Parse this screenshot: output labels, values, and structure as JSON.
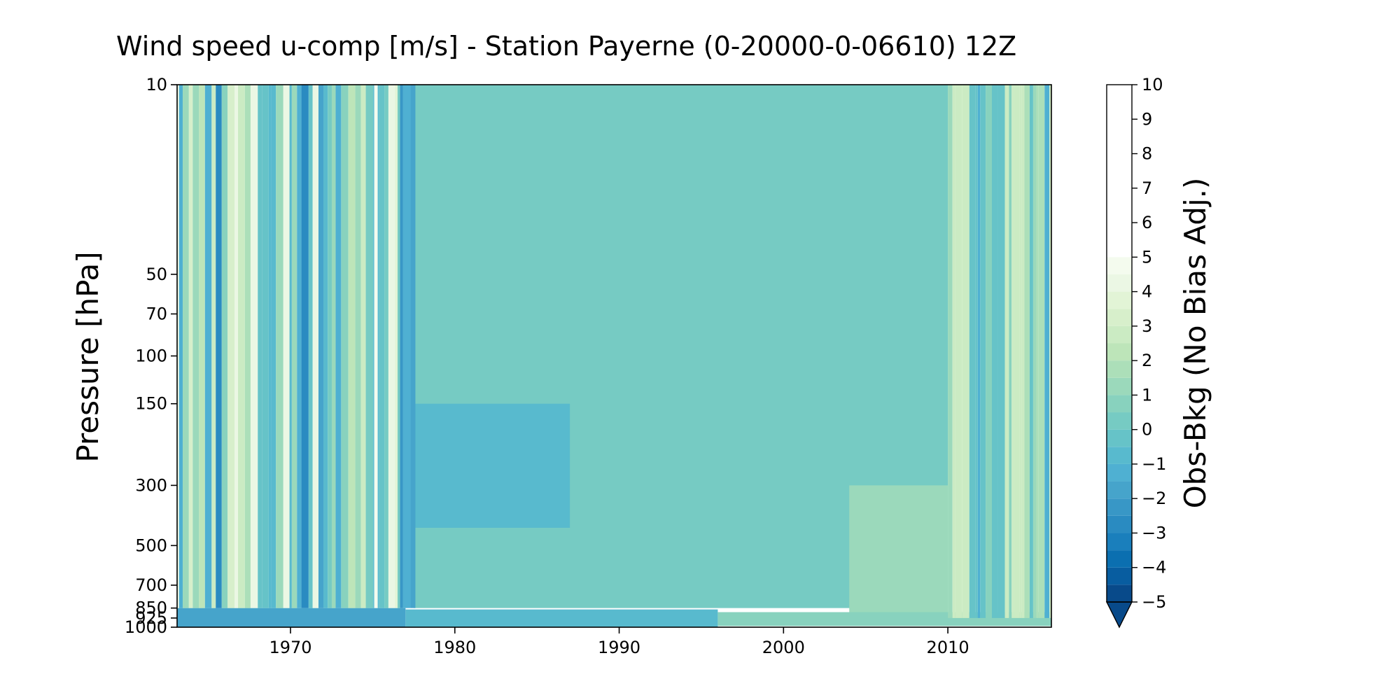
{
  "chart_data": {
    "type": "heatmap",
    "title": "Wind speed u-comp [m/s] - Station Payerne (0-20000-0-06610) 12Z",
    "xlabel": "",
    "ylabel": "Pressure [hPa]",
    "colorbar_label": "Obs-Bkg (No Bias Adj.)",
    "xlim": [
      1963.1,
      2016.3
    ],
    "x_ticks": [
      1970,
      1980,
      1990,
      2000,
      2010
    ],
    "x_tick_labels": [
      "1970",
      "1980",
      "1990",
      "2000",
      "2010"
    ],
    "y_scale": "log, inverted (10 hPa at top)",
    "ylim": [
      10,
      1000
    ],
    "y_ticks": [
      10,
      50,
      70,
      100,
      150,
      300,
      500,
      700,
      850,
      925,
      1000
    ],
    "y_tick_labels": [
      "10",
      "50",
      "70",
      "100",
      "150",
      "300",
      "500",
      "700",
      "850",
      "925",
      "1000"
    ],
    "colorbar_levels": [
      -5,
      -4.5,
      -4,
      -3.5,
      -3,
      -2.5,
      -2,
      -1.5,
      -1,
      -0.5,
      0,
      0.5,
      1,
      1.5,
      2,
      2.5,
      3,
      3.5,
      4,
      4.5,
      5,
      5.5,
      6,
      6.5,
      7,
      7.5,
      8,
      8.5,
      9,
      9.5,
      10
    ],
    "colorbar_ticks": [
      -5,
      -4,
      -3,
      -2,
      -1,
      0,
      1,
      2,
      3,
      4,
      5,
      6,
      7,
      8,
      9,
      10
    ],
    "colorbar_tick_labels": [
      "−5",
      "−4",
      "−3",
      "−2",
      "−1",
      "0",
      "1",
      "2",
      "3",
      "4",
      "5",
      "6",
      "7",
      "8",
      "9",
      "10"
    ],
    "colorbar_extend": "min",
    "colormap": "GnBu_r",
    "colorbar_colors": [
      "#084a8a",
      "#085da0",
      "#0b6fb0",
      "#1a7fbc",
      "#2a8bc1",
      "#3897c6",
      "#46a4cb",
      "#4fb0d2",
      "#58bace",
      "#66c3c8",
      "#76cbc3",
      "#88d2be",
      "#9bd9bb",
      "#acdfb9",
      "#bde5b9",
      "#cbebc3",
      "#d7efcb",
      "#e2f4d6",
      "#ebf7e4",
      "#f4fbee"
    ],
    "background_value": 0.2,
    "regions": [
      {
        "name": "mid-column 1977-2010",
        "x_range": [
          1977.5,
          2010
        ],
        "p_range": [
          10,
          850
        ],
        "approx_value": 0.2
      },
      {
        "name": "upper wedge 1977-1987",
        "x_range": [
          1977.5,
          1987
        ],
        "p_range": [
          150,
          430
        ],
        "approx_value": -0.7
      },
      {
        "name": "lower-right 2004-2010",
        "x_range": [
          2004,
          2010
        ],
        "p_range": [
          300,
          900
        ],
        "approx_value": 1.2
      },
      {
        "name": "near-surface 1963-1977",
        "x_range": [
          1963.1,
          1977
        ],
        "p_range": [
          850,
          1000
        ],
        "approx_value": -1.6
      },
      {
        "name": "near-surface 1977-1996",
        "x_range": [
          1977,
          1996
        ],
        "p_range": [
          860,
          1000
        ],
        "approx_value": -0.8
      },
      {
        "name": "near-surface 1996-2016",
        "x_range": [
          1996,
          2016.3
        ],
        "p_range": [
          880,
          990
        ],
        "approx_value": 0.6
      }
    ],
    "noisy_periods": [
      {
        "x_range": [
          1963.1,
          1977.6
        ],
        "p_range": [
          10,
          850
        ],
        "value_range": [
          -3,
          5
        ]
      },
      {
        "x_range": [
          2010,
          2016.3
        ],
        "p_range": [
          10,
          925
        ],
        "value_range": [
          -1.5,
          3
        ]
      }
    ],
    "notable_streaks": [
      {
        "x": 1975.2,
        "approx_value": 7
      },
      {
        "x": 1966.7,
        "approx_value": 4
      }
    ]
  }
}
